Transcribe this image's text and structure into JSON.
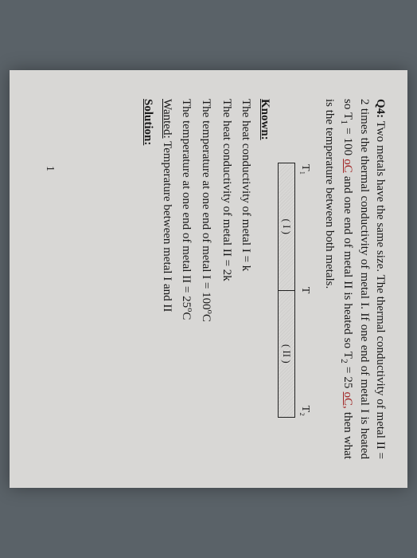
{
  "q": {
    "label": "Q4:",
    "text_a": " Two metals have the same size. The thermal conductivity of metal II = 2 times the thermal conductivity of metal I. If one end of metal I is heated so T",
    "t1sub": "1",
    "t1val": " = 100 ",
    "t1unit": "oC",
    "text_b": " and one end of metal II is heated so T",
    "t2sub": "2",
    "t2val": " = 25 ",
    "t2unit": "oC,",
    "text_c": " then what is the temperature between both metals."
  },
  "diagram": {
    "t1": "T₁",
    "t": "T",
    "t2": "T₂",
    "seg1": "( I )",
    "seg2": "( II )"
  },
  "known": {
    "header": "Known:",
    "l1": "The heat conductivity of metal I = k",
    "l2": "The heat conductivity of metal II = 2k",
    "l3": "The temperature at one end of metal I = 100",
    "l3u": "oC",
    "l4": "The temperature at one end of metal II = 25",
    "l4u": "oC"
  },
  "wanted": {
    "label": "Wanted:",
    "text": " Temperature between metal I and II"
  },
  "solution": "Solution:",
  "loneNum": "1"
}
